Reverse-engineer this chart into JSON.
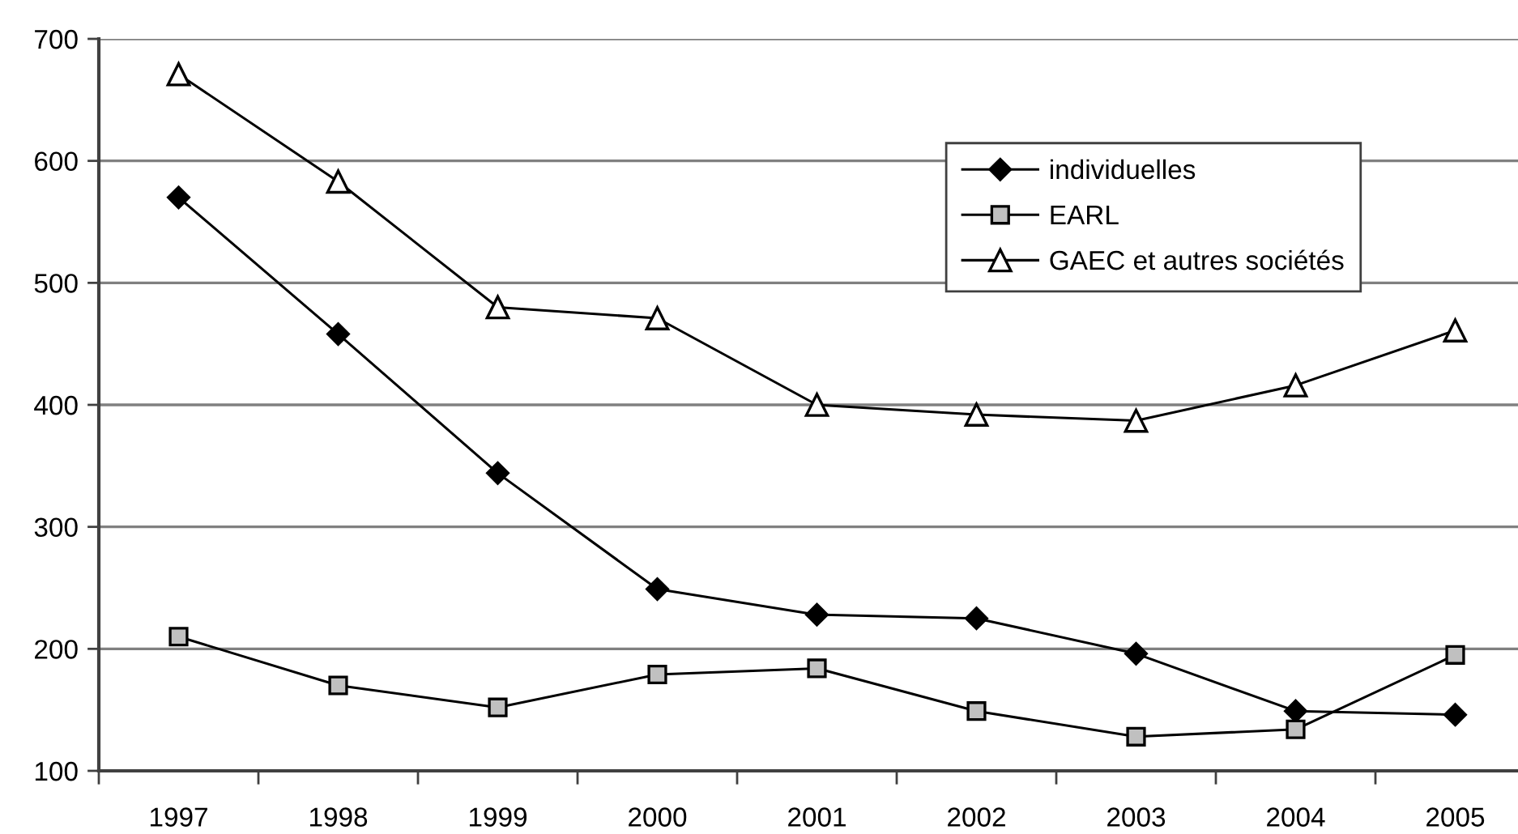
{
  "chart_data": {
    "type": "line",
    "categories": [
      "1997",
      "1998",
      "1999",
      "2000",
      "2001",
      "2002",
      "2003",
      "2004",
      "2005"
    ],
    "series": [
      {
        "name": "individuelles",
        "color": "#000000",
        "marker": "diamond",
        "values": [
          570,
          458,
          344,
          249,
          228,
          225,
          196,
          149,
          146
        ]
      },
      {
        "name": "EARL",
        "color": "#c0c0c0",
        "marker": "square",
        "values": [
          210,
          170,
          152,
          179,
          184,
          149,
          128,
          134,
          195
        ]
      },
      {
        "name": "GAEC et autres sociétés",
        "color": "#ffffff",
        "marker": "triangle",
        "values": [
          671,
          583,
          480,
          471,
          400,
          392,
          387,
          416,
          461
        ]
      }
    ],
    "ylim": [
      100,
      700
    ],
    "yticks": [
      100,
      200,
      300,
      400,
      500,
      600,
      700
    ],
    "grid": "y",
    "legend": "top right",
    "line_style": "solid"
  }
}
